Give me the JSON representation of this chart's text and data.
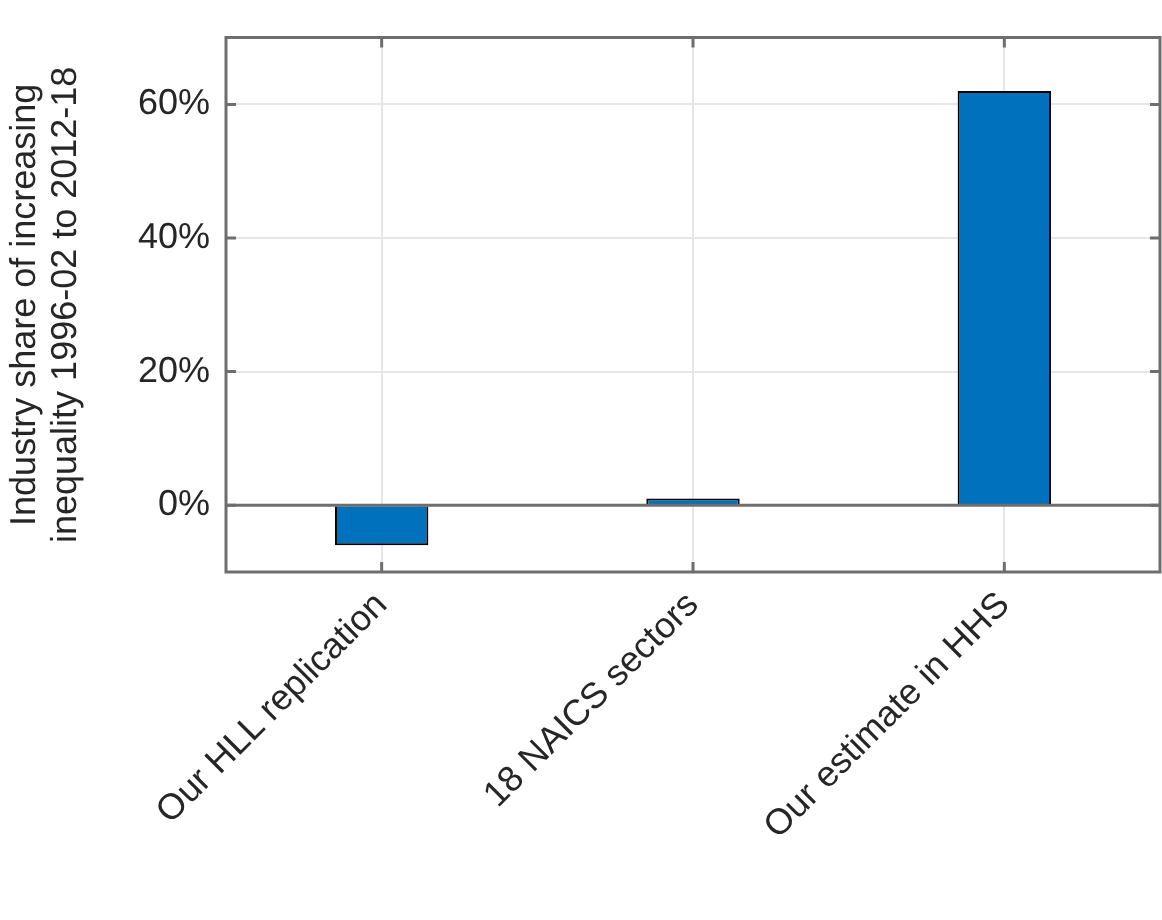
{
  "chart_data": {
    "type": "bar",
    "ylabel": "Industry share of increasing inequality 1996-02 to 2012-18",
    "categories": [
      "Our HLL replication",
      "18 NAICS sectors",
      "Our estimate in HHS"
    ],
    "values": [
      -6,
      1,
      62
    ],
    "color": "#0072bd",
    "ylim": [
      -10,
      70
    ],
    "yticks": [
      {
        "value": 0,
        "label": "0%"
      },
      {
        "value": 20,
        "label": "20%"
      },
      {
        "value": 40,
        "label": "40%"
      },
      {
        "value": 60,
        "label": "60%"
      }
    ],
    "ref_lines": [
      {
        "axis": "y",
        "value": 0,
        "color": "#6e6e6e"
      }
    ],
    "grid": true,
    "legend": false
  }
}
